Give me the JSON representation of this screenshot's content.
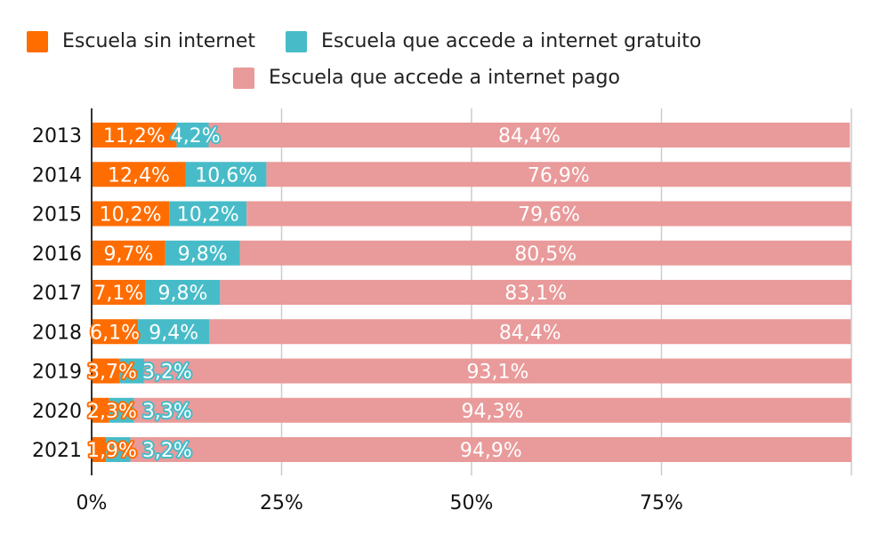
{
  "chart_data": {
    "type": "bar",
    "orientation": "horizontal",
    "stacked": true,
    "categories": [
      "2013",
      "2014",
      "2015",
      "2016",
      "2017",
      "2018",
      "2019",
      "2020",
      "2021"
    ],
    "series": [
      {
        "name": "Escuela sin internet",
        "color": "#ff6d00",
        "values": [
          11.2,
          12.4,
          10.2,
          9.7,
          7.1,
          6.1,
          3.7,
          2.3,
          1.9
        ],
        "labels": [
          "11,2%",
          "12,4%",
          "10,2%",
          "9,7%",
          "7,1%",
          "6,1%",
          "3,7%",
          "2,3%",
          "1,9%"
        ]
      },
      {
        "name": "Escuela que accede a internet gratuito",
        "color": "#47bcc8",
        "values": [
          4.2,
          10.6,
          10.2,
          9.8,
          9.8,
          9.4,
          3.2,
          3.3,
          3.2
        ],
        "labels": [
          "4,2%",
          "10,6%",
          "10,2%",
          "9,8%",
          "9,8%",
          "9,4%",
          "3,2%",
          "3,3%",
          "3,2%"
        ]
      },
      {
        "name": "Escuela que accede a internet pago",
        "color": "#e99a9a",
        "values": [
          84.4,
          76.9,
          79.6,
          80.5,
          83.1,
          84.4,
          93.1,
          94.3,
          94.9
        ],
        "labels": [
          "84,4%",
          "76,9%",
          "79,6%",
          "80,5%",
          "83,1%",
          "84,4%",
          "93,1%",
          "94,3%",
          "94,9%"
        ]
      }
    ],
    "xlim": [
      0,
      100
    ],
    "xticks": [
      0,
      25,
      50,
      75,
      100
    ],
    "xtick_labels": [
      "0%",
      "25%",
      "50%",
      "75%",
      ""
    ],
    "grid": true,
    "legend_position": "top"
  }
}
